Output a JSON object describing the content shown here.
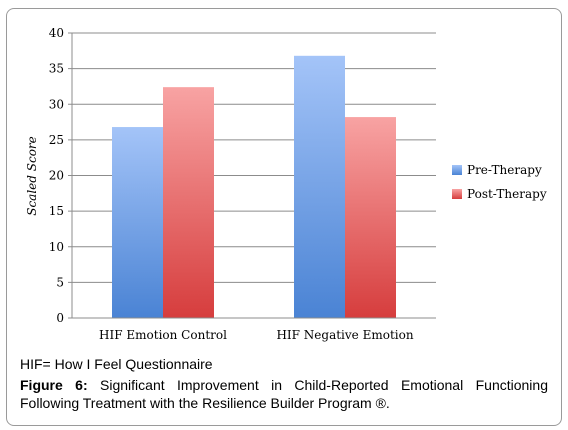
{
  "chart_data": {
    "type": "bar",
    "categories": [
      "HIF Emotion Control",
      "HIF Negative Emotion"
    ],
    "series": [
      {
        "name": "Pre-Therapy",
        "values": [
          26.8,
          36.8
        ],
        "color": "#5b8ad6"
      },
      {
        "name": "Post-Therapy",
        "values": [
          32.4,
          28.2
        ],
        "color": "#d85a5a"
      }
    ],
    "ylabel": "Scaled Score",
    "xlabel": "",
    "ylim": [
      0,
      40
    ],
    "yticks": [
      0,
      5,
      10,
      15,
      20,
      25,
      30,
      35,
      40
    ],
    "grid": true,
    "legend_position": "right"
  },
  "caption": {
    "note": "HIF= How I Feel Questionnaire",
    "figure_label": "Figure 6:",
    "figure_text": " Significant Improvement in Child-Reported Emotional Functioning Following Treatment with the Resilience Builder Program ®."
  }
}
